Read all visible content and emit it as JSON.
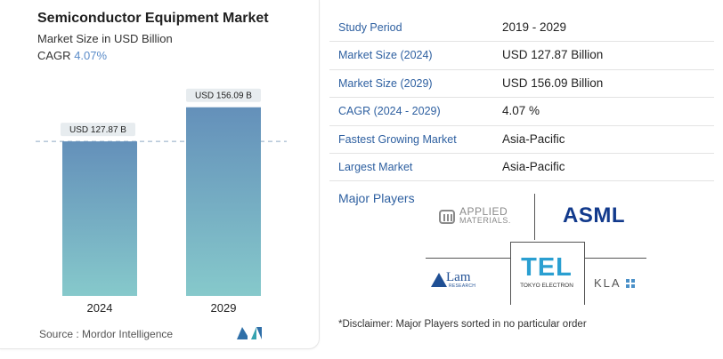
{
  "header": {
    "title": "Semiconductor Equipment Market",
    "subtitle": "Market Size in USD Billion",
    "cagr_label": "CAGR",
    "cagr_value": "4.07%"
  },
  "chart_data": {
    "type": "bar",
    "categories": [
      "2024",
      "2029"
    ],
    "values": [
      127.87,
      156.09
    ],
    "data_labels": [
      "USD 127.87 B",
      "USD 156.09 B"
    ],
    "title": "",
    "xlabel": "",
    "ylabel": "",
    "ylim": [
      0,
      160
    ],
    "grid": false,
    "reference_line": "dashed at 2024 value",
    "colors": {
      "bar_top": "#6490ba",
      "bar_bottom": "#86c9cb",
      "label_bg": "#e7ecef",
      "dash": "#8fa9c4"
    }
  },
  "source": "Source :  Mordor Intelligence",
  "table": [
    {
      "key": "Study Period",
      "value": "2019 - 2029"
    },
    {
      "key": "Market Size (2024)",
      "value": "USD 127.87 Billion"
    },
    {
      "key": "Market Size (2029)",
      "value": "USD 156.09 Billion"
    },
    {
      "key": "CAGR (2024 - 2029)",
      "value": "4.07 %"
    },
    {
      "key": "Fastest Growing Market",
      "value": "Asia-Pacific"
    },
    {
      "key": "Largest Market",
      "value": "Asia-Pacific"
    }
  ],
  "players": {
    "title": "Major Players",
    "logos": {
      "applied_line1": "APPLIED",
      "applied_line2": "MATERIALS.",
      "asml": "ASML",
      "lam": "Lam",
      "lam_sub": "RESEARCH",
      "tel": "TEL",
      "tel_sub": "TOKYO ELECTRON",
      "kla": "KLA"
    }
  },
  "disclaimer": "*Disclaimer: Major Players sorted in no particular order"
}
